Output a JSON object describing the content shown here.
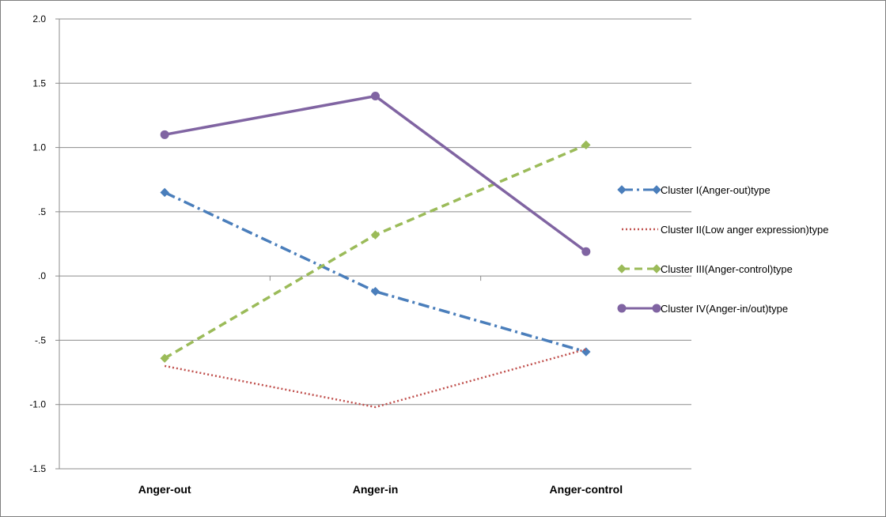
{
  "chart_data": {
    "type": "line",
    "categories": [
      "Anger-out",
      "Anger-in",
      "Anger-control"
    ],
    "yticks": [
      {
        "value": 2.0,
        "label": "2.0"
      },
      {
        "value": 1.5,
        "label": "1.5"
      },
      {
        "value": 1.0,
        "label": "1.0"
      },
      {
        "value": 0.5,
        "label": ".5"
      },
      {
        "value": 0.0,
        "label": ".0"
      },
      {
        "value": -0.5,
        "label": "-.5"
      },
      {
        "value": -1.0,
        "label": "-1.0"
      },
      {
        "value": -1.5,
        "label": "-1.5"
      }
    ],
    "ylim": [
      -1.5,
      2.0
    ],
    "grid": "horizontal",
    "legend_position": "right",
    "series": [
      {
        "name": "Cluster I(Anger-out)type",
        "values": [
          0.65,
          -0.12,
          -0.59
        ],
        "color": "#4a7ebb",
        "dash": "dash-dot",
        "marker": "diamond"
      },
      {
        "name": "Cluster II(Low anger expression)type",
        "values": [
          -0.7,
          -1.02,
          -0.57
        ],
        "color": "#c0504d",
        "dash": "dotted",
        "marker": "none"
      },
      {
        "name": "Cluster III(Anger-control)type",
        "values": [
          -0.64,
          0.32,
          1.02
        ],
        "color": "#9bbb59",
        "dash": "dashed",
        "marker": "diamond"
      },
      {
        "name": "Cluster IV(Anger-in/out)type",
        "values": [
          1.1,
          1.4,
          0.19
        ],
        "color": "#8064a2",
        "dash": "solid",
        "marker": "circle"
      }
    ]
  }
}
